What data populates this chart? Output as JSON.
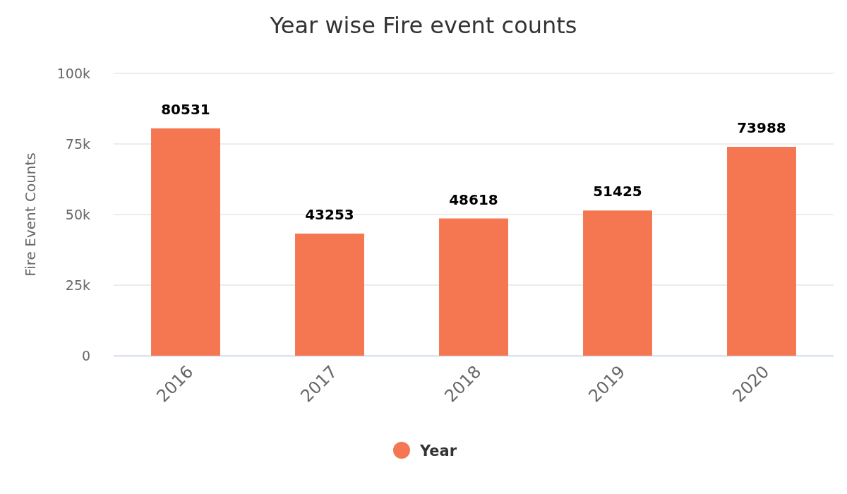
{
  "chart_data": {
    "type": "bar",
    "title": "Year wise Fire event counts",
    "ylabel": "Fire Event Counts",
    "categories": [
      "2016",
      "2017",
      "2018",
      "2019",
      "2020"
    ],
    "series": [
      {
        "name": "Year",
        "color": "#f47752",
        "values": [
          80531,
          43253,
          48618,
          51425,
          73988
        ]
      }
    ],
    "ylim": [
      0,
      100000
    ],
    "yticks": [
      {
        "value": 0,
        "label": "0"
      },
      {
        "value": 25000,
        "label": "25k"
      },
      {
        "value": 50000,
        "label": "50k"
      },
      {
        "value": 75000,
        "label": "75k"
      },
      {
        "value": 100000,
        "label": "100k"
      }
    ],
    "grid": "y",
    "legend": "bottom",
    "data_labels": true
  }
}
